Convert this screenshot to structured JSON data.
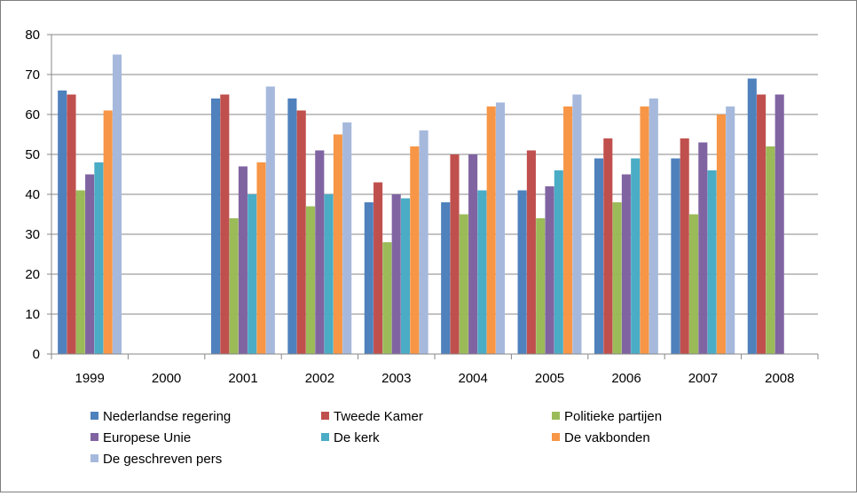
{
  "chart_data": {
    "type": "bar",
    "title": "",
    "xlabel": "",
    "ylabel": "",
    "ylim": [
      0,
      80
    ],
    "yticks": [
      0,
      10,
      20,
      30,
      40,
      50,
      60,
      70,
      80
    ],
    "grid": true,
    "legend_position": "bottom",
    "categories": [
      "1999",
      "2000",
      "2001",
      "2002",
      "2003",
      "2004",
      "2005",
      "2006",
      "2007",
      "2008"
    ],
    "series": [
      {
        "name": "Nederlandse regering",
        "color": "#4F81BD",
        "values": [
          66,
          null,
          64,
          64,
          38,
          38,
          41,
          49,
          49,
          69
        ]
      },
      {
        "name": "Tweede Kamer",
        "color": "#C0504D",
        "values": [
          65,
          null,
          65,
          61,
          43,
          50,
          51,
          54,
          54,
          65
        ]
      },
      {
        "name": "Politieke partijen",
        "color": "#9BBB59",
        "values": [
          41,
          null,
          34,
          37,
          28,
          35,
          34,
          38,
          35,
          52
        ]
      },
      {
        "name": "Europese Unie",
        "color": "#8064A2",
        "values": [
          45,
          null,
          47,
          51,
          40,
          50,
          42,
          45,
          53,
          65
        ]
      },
      {
        "name": "De kerk",
        "color": "#4BACC6",
        "values": [
          48,
          null,
          40,
          40,
          39,
          41,
          46,
          49,
          46,
          null
        ]
      },
      {
        "name": "De vakbonden",
        "color": "#F79646",
        "values": [
          61,
          null,
          48,
          55,
          52,
          62,
          62,
          62,
          60,
          null
        ]
      },
      {
        "name": "De geschreven pers",
        "color": "#A6B9DD",
        "values": [
          75,
          null,
          67,
          58,
          56,
          63,
          65,
          64,
          62,
          null
        ]
      }
    ]
  }
}
